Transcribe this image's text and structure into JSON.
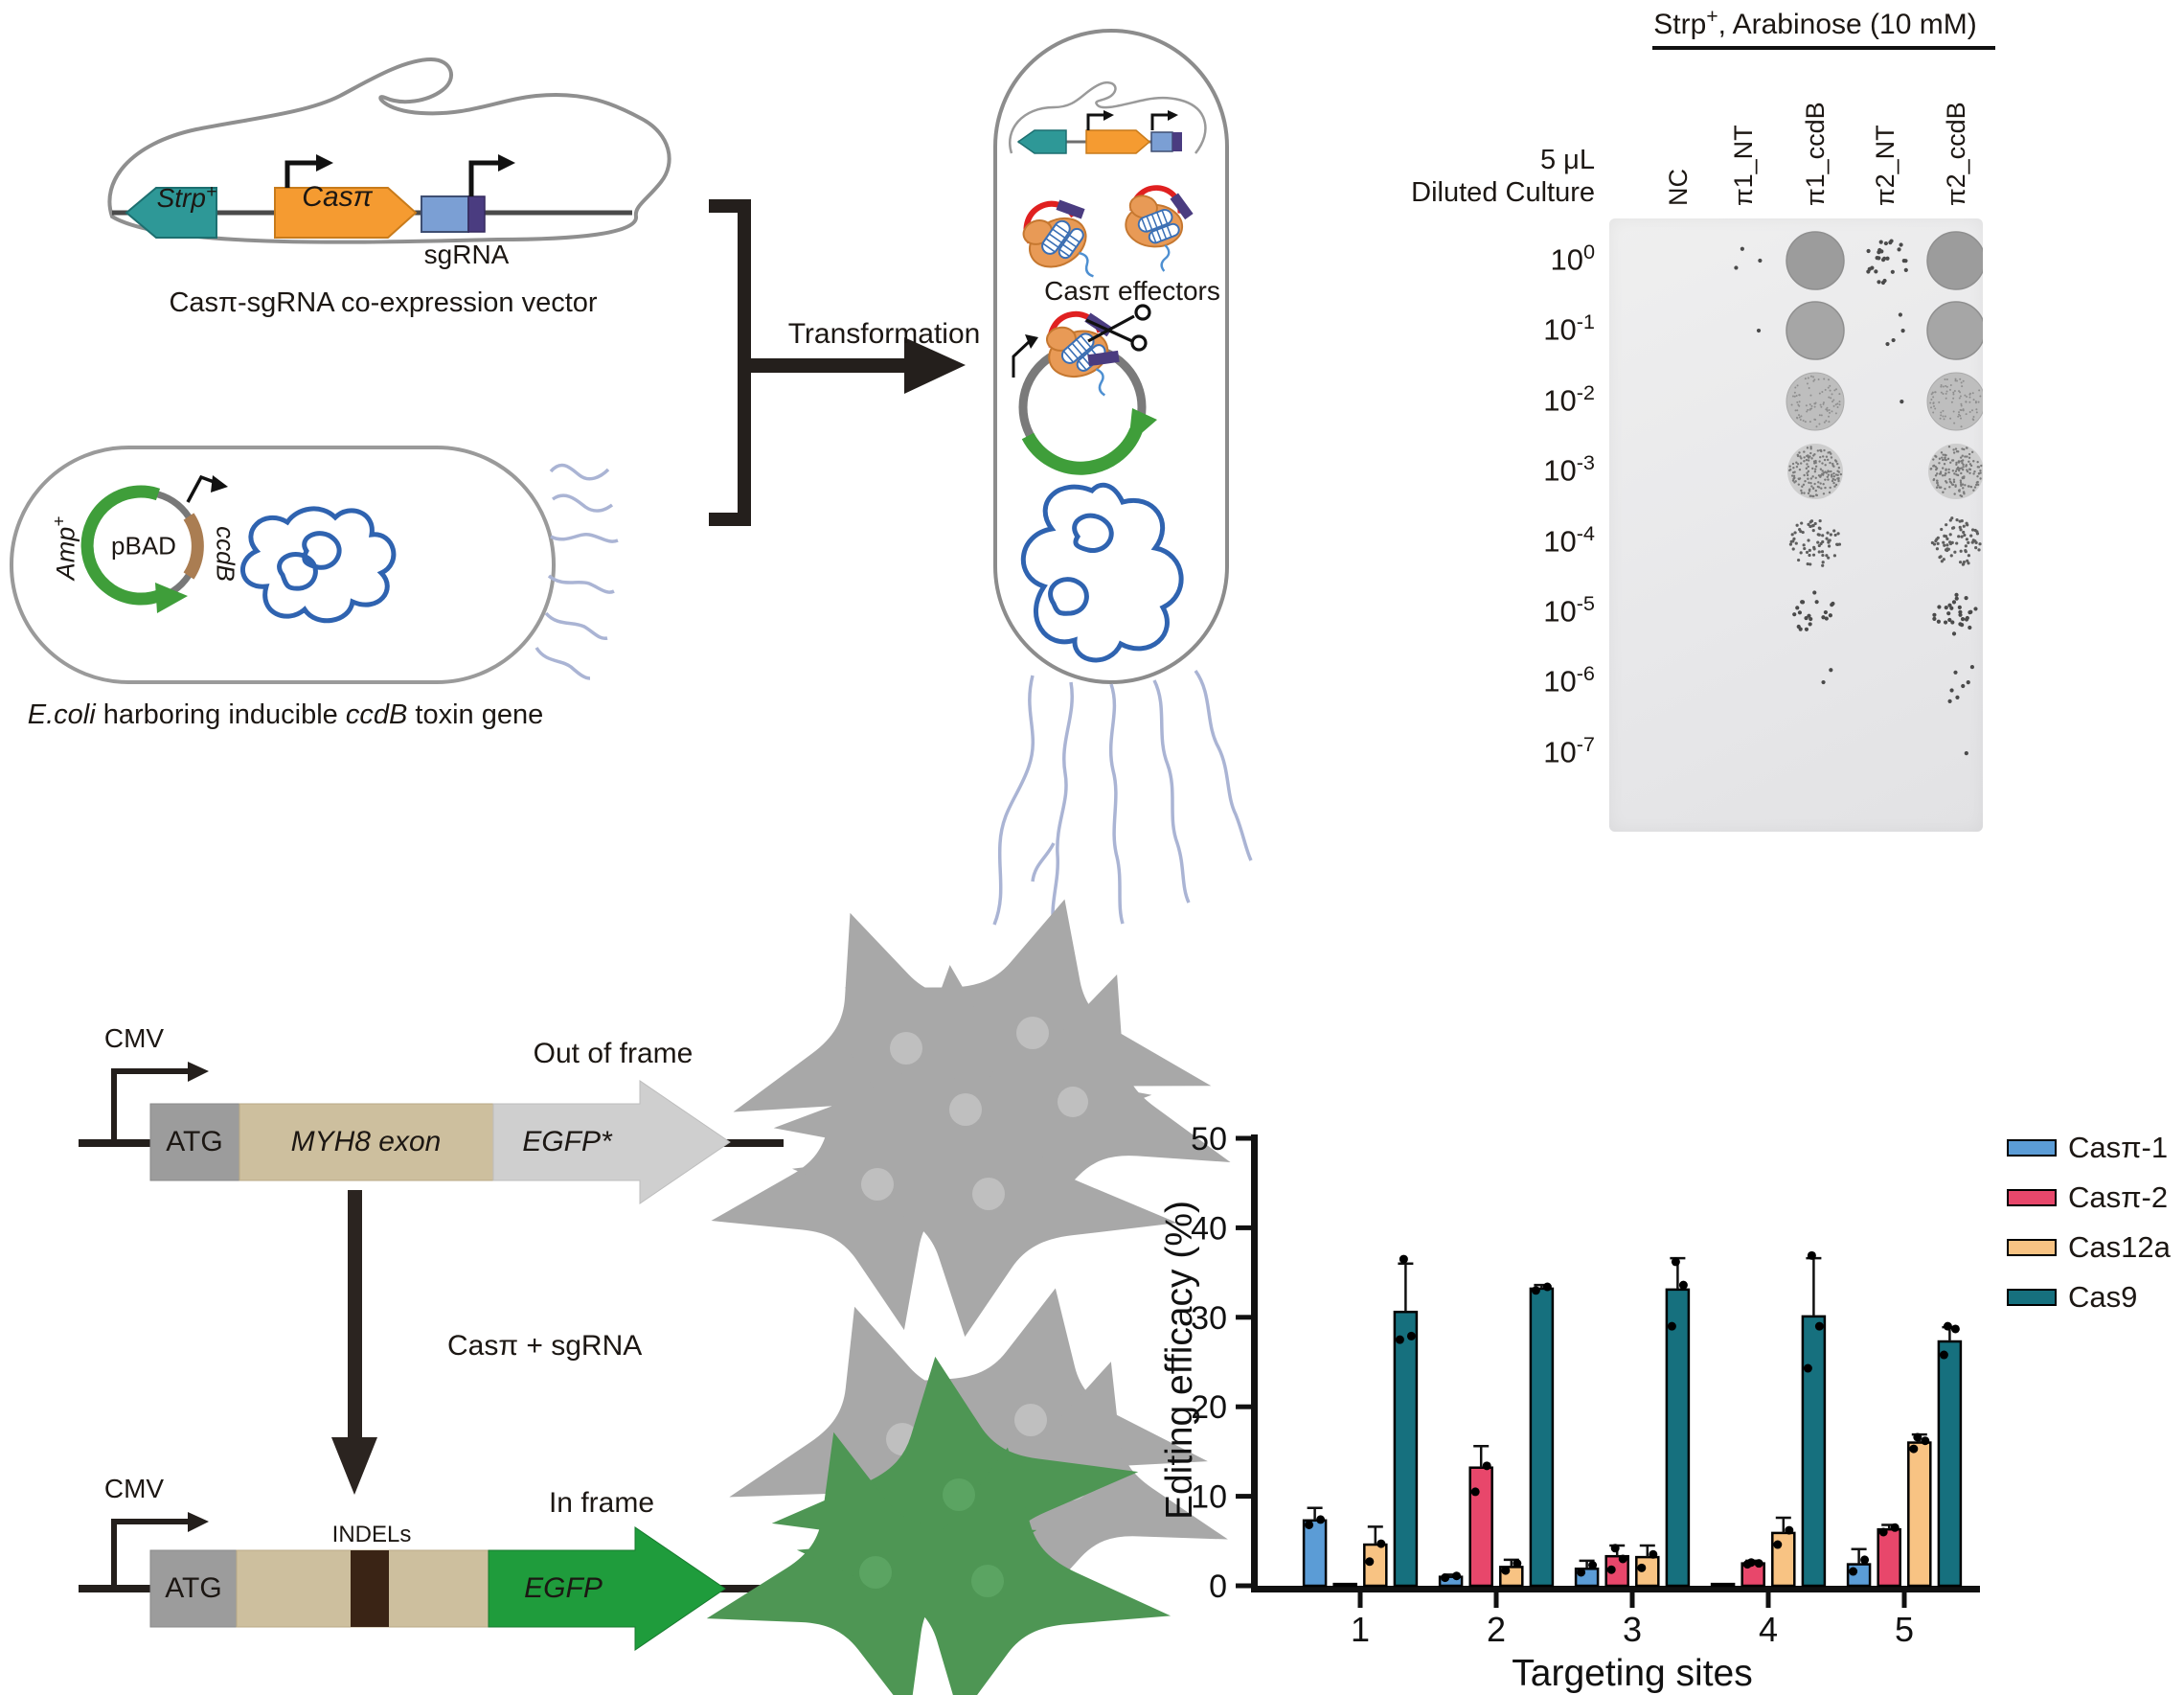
{
  "panel_top": {
    "vector_label": "Casπ-sgRNA co-expression vector",
    "plasmid": {
      "strp": "Strp",
      "strp_sup": "+",
      "cas": "Casπ",
      "sgrna": "sgRNA"
    },
    "ecoli": {
      "amp": "Amp",
      "amp_sup": "+",
      "pbad": "pBAD",
      "ccdb": "ccdB",
      "caption_part1": "E.coli",
      "caption_part2": " harboring inducible ",
      "caption_part3": "ccdB",
      "caption_part4": " toxin gene"
    },
    "transformation_label": "Transformation",
    "effectors_label": "Casπ effectors",
    "spot_assay": {
      "condition_pre": "Strp",
      "condition_sup": "+",
      "condition_post": ", Arabinose (10 mM)",
      "volume": "5 μL",
      "culture": "Diluted Culture",
      "columns": [
        "NC",
        "π1_NT",
        "π1_ccdB",
        "π2_NT",
        "π2_ccdB"
      ],
      "dilution_base": "10",
      "dilution_exponents": [
        "0",
        "-1",
        "-2",
        "-3",
        "-4",
        "-5",
        "-6",
        "-7"
      ],
      "pattern": {
        "NC": [
          "",
          "",
          "",
          "",
          "",
          "",
          "",
          ""
        ],
        "π1_NT": [
          "dots:3",
          "dots:1",
          "",
          "",
          "",
          "",
          "",
          ""
        ],
        "π1_ccdB": [
          "lawn",
          "lawn",
          "film",
          "stipple",
          "specks:65",
          "dots:20",
          "dots:2",
          ""
        ],
        "π2_NT": [
          "dots:26",
          "dots:4",
          "dots:1",
          "",
          "",
          "",
          "",
          ""
        ],
        "π2_ccdB": [
          "lawn",
          "lawn",
          "film",
          "stipple",
          "specks:72",
          "dots:28",
          "dots:7",
          "dots:1"
        ]
      }
    }
  },
  "panel_bottom": {
    "cmv": "CMV",
    "atg": "ATG",
    "myh8": "MYH8 exon",
    "egfp_star": "EGFP*",
    "out_of_frame": "Out of frame",
    "cas_sgrna": "Casπ + sgRNA",
    "indels": "INDELs",
    "egfp": "EGFP",
    "in_frame": "In frame"
  },
  "chart_data": {
    "type": "bar",
    "title": "",
    "xlabel": "Targeting sites",
    "ylabel": "Editing efficacy (%)",
    "ylim": [
      0,
      50
    ],
    "yticks": [
      0,
      10,
      20,
      30,
      40,
      50
    ],
    "categories": [
      "1",
      "2",
      "3",
      "4",
      "5"
    ],
    "grid": false,
    "legend_position": "right",
    "series": [
      {
        "name": "Casπ-1",
        "color": "#5B9CD6",
        "values": [
          7.3,
          1.0,
          1.9,
          0.2,
          2.4
        ],
        "errors": [
          1.4,
          0.25,
          0.9,
          0,
          1.7
        ],
        "points": [
          [
            6.8,
            7.4
          ],
          [
            0.9,
            1.1
          ],
          [
            1.5,
            2.3
          ],
          [],
          [
            1.6,
            2.9
          ]
        ]
      },
      {
        "name": "Casπ-2",
        "color": "#E8476B",
        "values": [
          0.2,
          13.2,
          3.3,
          2.5,
          6.3
        ],
        "errors": [
          0,
          2.4,
          1.2,
          0.3,
          0.5
        ],
        "points": [
          [],
          [
            10.5,
            13.4
          ],
          [
            1.8,
            3.0,
            4.2
          ],
          [
            2.4,
            2.5,
            2.6
          ],
          [
            6.0,
            6.5
          ]
        ]
      },
      {
        "name": "Cas12a",
        "color": "#F8C383",
        "values": [
          4.6,
          2.1,
          3.2,
          5.9,
          16.0
        ],
        "errors": [
          2.0,
          0.8,
          1.3,
          1.7,
          0.9
        ],
        "points": [
          [
            2.7,
            4.7
          ],
          [
            1.7,
            2.5
          ],
          [
            2.0,
            3.5
          ],
          [
            4.6,
            6.2
          ],
          [
            15.3,
            16.2,
            16.6
          ]
        ]
      },
      {
        "name": "Cas9",
        "color": "#16707E",
        "values": [
          30.6,
          33.2,
          33.1,
          30.1,
          27.3
        ],
        "errors": [
          5.4,
          0.4,
          3.5,
          6.5,
          1.6
        ],
        "points": [
          [
            27.5,
            27.9,
            36.5
          ],
          [
            33.0,
            33.4
          ],
          [
            29.0,
            33.6,
            36.2
          ],
          [
            24.3,
            29.0,
            36.9
          ],
          [
            25.8,
            28.7,
            29.0
          ]
        ]
      }
    ]
  },
  "colors": {
    "strp_teal": "#2E9897",
    "cas_orange": "#F59B31",
    "sgrna_blue": "#7B9FD4",
    "sgrna_purple": "#4A3C80",
    "pbad_green": "#3F9E3A",
    "ccdb_brown": "#AA7D52",
    "egfp_green": "#1F9C3C",
    "tan_exon": "#CDBF9E",
    "atg_gray": "#9C9C9C",
    "egfp_out_gray": "#CFCFCF",
    "chromosome_blue": "#2F63B0",
    "flagella_blue": "#AAB4D4",
    "cell_gray": "#E4E4E4",
    "cell_green": "#7FBC82",
    "indel_brown": "#3A2415"
  }
}
